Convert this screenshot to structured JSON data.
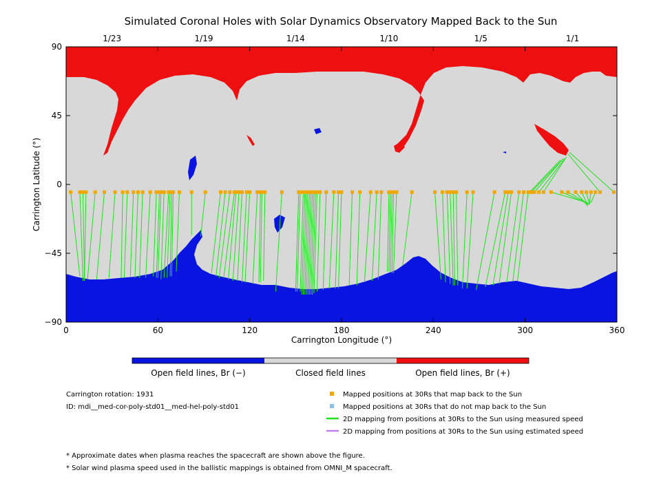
{
  "chart_data": {
    "type": "scatter",
    "title": "Simulated Coronal Holes with Solar Dynamics Observatory Mapped Back to the Sun",
    "xlabel": "Carrington Longitude (°)",
    "ylabel": "Carrington Latitude (°)",
    "xlim": [
      0,
      360
    ],
    "ylim": [
      -90,
      90
    ],
    "x_ticks": [
      "0",
      "60",
      "120",
      "180",
      "240",
      "300",
      "360"
    ],
    "y_ticks": [
      "90",
      "45",
      "0",
      "−45",
      "−90"
    ],
    "top_axis_dates": [
      {
        "label": "1/23",
        "lon": 30
      },
      {
        "label": "1/19",
        "lon": 90
      },
      {
        "label": "1/14",
        "lon": 150
      },
      {
        "label": "1/10",
        "lon": 211
      },
      {
        "label": "1/5",
        "lon": 271
      },
      {
        "label": "1/1",
        "lon": 331
      }
    ],
    "map_colors": {
      "negative_open": "#0a14e0",
      "closed": "#d8d8d8",
      "positive_open": "#ee1010"
    },
    "colorbar": [
      "Open field lines, Br (−)",
      "Closed field lines",
      "Open field lines, Br (+)"
    ],
    "source_lat": -5,
    "series": [
      {
        "name": "Mapped positions at 30Rs that map back to the Sun",
        "marker_color": "#f0a800",
        "points": [
          {
            "x": 3,
            "y": -5,
            "foot": [
              9,
              -60
            ]
          },
          {
            "x": 9,
            "y": -5,
            "foot": [
              11,
              -63
            ]
          },
          {
            "x": 11,
            "y": -5,
            "foot": [
              12,
              -63
            ]
          },
          {
            "x": 13,
            "y": -5,
            "foot": [
              12,
              -63
            ]
          },
          {
            "x": 19,
            "y": -5,
            "foot": [
              14,
              -62
            ]
          },
          {
            "x": 25,
            "y": -5,
            "foot": [
              20,
              -62
            ]
          },
          {
            "x": 32,
            "y": -5,
            "foot": [
              28,
              -61
            ]
          },
          {
            "x": 37,
            "y": -5,
            "foot": [
              36,
              -61
            ]
          },
          {
            "x": 40,
            "y": -5,
            "foot": [
              38,
              -61
            ]
          },
          {
            "x": 44,
            "y": -5,
            "foot": [
              42,
              -60
            ]
          },
          {
            "x": 47,
            "y": -5,
            "foot": [
              45,
              -61
            ]
          },
          {
            "x": 50,
            "y": -5,
            "foot": [
              48,
              -61
            ]
          },
          {
            "x": 55,
            "y": -5,
            "foot": [
              52,
              -61
            ]
          },
          {
            "x": 59,
            "y": -5,
            "foot": [
              57,
              -60
            ]
          },
          {
            "x": 61,
            "y": -5,
            "foot": [
              59,
              -61
            ]
          },
          {
            "x": 62,
            "y": -5,
            "foot": [
              60,
              -61
            ]
          },
          {
            "x": 64,
            "y": -5,
            "foot": [
              62,
              -62
            ]
          },
          {
            "x": 67,
            "y": -5,
            "foot": [
              64,
              -61
            ]
          },
          {
            "x": 68,
            "y": -5,
            "foot": [
              66,
              -61
            ]
          },
          {
            "x": 69,
            "y": -5,
            "foot": [
              68,
              -60
            ]
          },
          {
            "x": 70,
            "y": -5,
            "foot": [
              69,
              -60
            ]
          },
          {
            "x": 74,
            "y": -5,
            "foot": [
              72,
              -57
            ]
          },
          {
            "x": 82,
            "y": -5,
            "foot": [
              82,
              -33
            ]
          },
          {
            "x": 91,
            "y": -5,
            "foot": [
              88,
              -34
            ]
          },
          {
            "x": 101,
            "y": -5,
            "foot": [
              95,
              -58
            ]
          },
          {
            "x": 104,
            "y": -5,
            "foot": [
              98,
              -60
            ]
          },
          {
            "x": 107,
            "y": -5,
            "foot": [
              100,
              -61
            ]
          },
          {
            "x": 110,
            "y": -5,
            "foot": [
              103,
              -61
            ]
          },
          {
            "x": 111,
            "y": -5,
            "foot": [
              106,
              -62
            ]
          },
          {
            "x": 113,
            "y": -5,
            "foot": [
              109,
              -63
            ]
          },
          {
            "x": 115,
            "y": -5,
            "foot": [
              112,
              -63
            ]
          },
          {
            "x": 118,
            "y": -5,
            "foot": [
              115,
              -64
            ]
          },
          {
            "x": 120,
            "y": -5,
            "foot": [
              117,
              -64
            ]
          },
          {
            "x": 125,
            "y": -5,
            "foot": [
              122,
              -65
            ]
          },
          {
            "x": 127,
            "y": -5,
            "foot": [
              126,
              -64
            ]
          },
          {
            "x": 128,
            "y": -5,
            "foot": [
              127,
              -64
            ]
          },
          {
            "x": 130,
            "y": -5,
            "foot": [
              129,
              -63
            ]
          },
          {
            "x": 141,
            "y": -5,
            "foot": [
              137,
              -70
            ]
          },
          {
            "x": 152,
            "y": -5,
            "foot": [
              150,
              -70
            ]
          },
          {
            "x": 153,
            "y": -5,
            "foot": [
              151,
              -70
            ]
          },
          {
            "x": 155,
            "y": -5,
            "foot": [
              153,
              -70
            ]
          },
          {
            "x": 156,
            "y": -5,
            "foot": [
              154,
              -72
            ]
          },
          {
            "x": 157,
            "y": -5,
            "foot": [
              155,
              -72
            ]
          },
          {
            "x": 158,
            "y": -5,
            "foot": [
              156,
              -72
            ]
          },
          {
            "x": 159,
            "y": -5,
            "foot": [
              157,
              -72
            ]
          },
          {
            "x": 160,
            "y": -5,
            "foot": [
              158,
              -72
            ]
          },
          {
            "x": 161,
            "y": -5,
            "foot": [
              159,
              -72
            ]
          },
          {
            "x": 162,
            "y": -5,
            "foot": [
              160,
              -72
            ]
          },
          {
            "x": 163,
            "y": -5,
            "foot": [
              161,
              -72
            ]
          },
          {
            "x": 164,
            "y": -5,
            "foot": [
              162,
              -71
            ]
          },
          {
            "x": 166,
            "y": -5,
            "foot": [
              164,
              -70
            ]
          },
          {
            "x": 170,
            "y": -5,
            "foot": [
              168,
              -69
            ]
          },
          {
            "x": 175,
            "y": -5,
            "foot": [
              172,
              -68
            ]
          },
          {
            "x": 178,
            "y": -5,
            "foot": [
              176,
              -68
            ]
          },
          {
            "x": 180,
            "y": -5,
            "foot": [
              178,
              -68
            ]
          },
          {
            "x": 187,
            "y": -5,
            "foot": [
              185,
              -66
            ]
          },
          {
            "x": 192,
            "y": -5,
            "foot": [
              190,
              -66
            ]
          },
          {
            "x": 199,
            "y": -5,
            "foot": [
              195,
              -64
            ]
          },
          {
            "x": 203,
            "y": -5,
            "foot": [
              200,
              -63
            ]
          },
          {
            "x": 206,
            "y": -5,
            "foot": [
              204,
              -62
            ]
          },
          {
            "x": 211,
            "y": -5,
            "foot": [
              210,
              -57
            ]
          },
          {
            "x": 212,
            "y": -5,
            "foot": [
              211,
              -57
            ]
          },
          {
            "x": 213,
            "y": -5,
            "foot": [
              212,
              -57
            ]
          },
          {
            "x": 214,
            "y": -5,
            "foot": [
              213,
              -58
            ]
          },
          {
            "x": 216,
            "y": -5,
            "foot": [
              214,
              -58
            ]
          },
          {
            "x": 226,
            "y": -5,
            "foot": [
              220,
              -53
            ]
          },
          {
            "x": 241,
            "y": -5,
            "foot": [
              245,
              -62
            ]
          },
          {
            "x": 246,
            "y": -5,
            "foot": [
              248,
              -64
            ]
          },
          {
            "x": 249,
            "y": -5,
            "foot": [
              251,
              -65
            ]
          },
          {
            "x": 251,
            "y": -5,
            "foot": [
              253,
              -66
            ]
          },
          {
            "x": 253,
            "y": -5,
            "foot": [
              254,
              -66
            ]
          },
          {
            "x": 255,
            "y": -5,
            "foot": [
              256,
              -66
            ]
          },
          {
            "x": 262,
            "y": -5,
            "foot": [
              259,
              -68
            ]
          },
          {
            "x": 266,
            "y": -5,
            "foot": [
              262,
              -68
            ]
          },
          {
            "x": 280,
            "y": -5,
            "foot": [
              268,
              -69
            ]
          },
          {
            "x": 287,
            "y": -5,
            "foot": [
              274,
              -67
            ]
          },
          {
            "x": 289,
            "y": -5,
            "foot": [
              279,
              -66
            ]
          },
          {
            "x": 291,
            "y": -5,
            "foot": [
              283,
              -65
            ]
          },
          {
            "x": 296,
            "y": -5,
            "foot": [
              288,
              -64
            ]
          },
          {
            "x": 299,
            "y": -5,
            "foot": [
              292,
              -63
            ]
          },
          {
            "x": 302,
            "y": -5,
            "foot": [
              295,
              -63
            ]
          },
          {
            "x": 303,
            "y": -5,
            "foot": [
              323,
              16
            ]
          },
          {
            "x": 304,
            "y": -5,
            "foot": [
              324,
              16
            ]
          },
          {
            "x": 306,
            "y": -5,
            "foot": [
              325,
              17
            ]
          },
          {
            "x": 309,
            "y": -5,
            "foot": [
              326,
              17
            ]
          },
          {
            "x": 312,
            "y": -5,
            "foot": [
              327,
              18
            ]
          },
          {
            "x": 317,
            "y": -5,
            "foot": [
              341,
              -12
            ]
          },
          {
            "x": 324,
            "y": -5,
            "foot": [
              342,
              -13
            ]
          },
          {
            "x": 328,
            "y": -5,
            "foot": [
              342,
              -13
            ]
          },
          {
            "x": 333,
            "y": -5,
            "foot": [
              341,
              -14
            ]
          },
          {
            "x": 337,
            "y": -5,
            "foot": [
              341,
              -14
            ]
          },
          {
            "x": 340,
            "y": -5,
            "foot": [
              342,
              -13
            ]
          },
          {
            "x": 343,
            "y": -5,
            "foot": [
              342,
              -13
            ]
          },
          {
            "x": 346,
            "y": -5,
            "foot": [
              343,
              -12
            ]
          },
          {
            "x": 349,
            "y": -5,
            "foot": [
              328,
              20
            ]
          },
          {
            "x": 358,
            "y": -5,
            "foot": [
              329,
              21
            ]
          }
        ]
      },
      {
        "name": "Mapped positions at 30Rs that do not map back to the Sun",
        "marker_color": "#88c0f0",
        "points": []
      },
      {
        "name": "2D mapping from positions at 30Rs to the Sun using measured speed",
        "line_color": "#20e020"
      },
      {
        "name": "2D mapping from positions at 30Rs to the Sun using estimated speed",
        "line_color": "#c080f0"
      }
    ],
    "legend_placement": "bottom-right"
  },
  "info": {
    "rotation": "Carrington rotation: 1931",
    "id": "ID: mdi__med-cor-poly-std01__med-hel-poly-std01"
  },
  "footnotes": [
    "* Approximate dates when plasma reaches the spacecraft are shown above the figure.",
    "* Solar wind plasma speed used in the ballistic mappings is obtained from OMNI_M spacecraft."
  ]
}
